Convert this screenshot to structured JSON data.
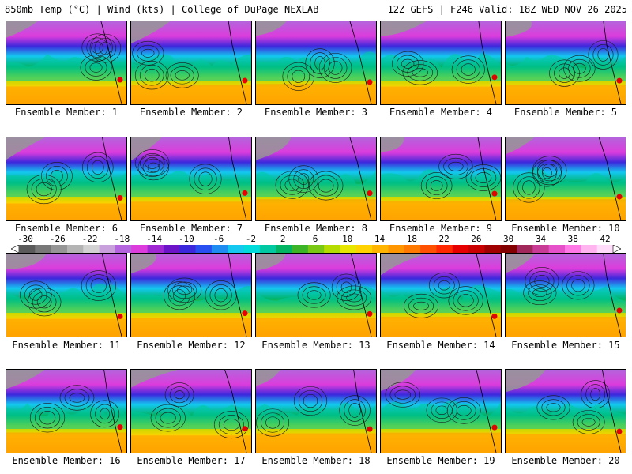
{
  "header": {
    "title_left": "850mb Temp (°C) | Wind (kts) | College of DuPage NEXLAB",
    "title_right": "12Z GEFS | F246 Valid: 18Z WED NOV 26 2025"
  },
  "members": [
    {
      "label": "Ensemble Member: 1"
    },
    {
      "label": "Ensemble Member: 2"
    },
    {
      "label": "Ensemble Member: 3"
    },
    {
      "label": "Ensemble Member: 4"
    },
    {
      "label": "Ensemble Member: 5"
    },
    {
      "label": "Ensemble Member: 6"
    },
    {
      "label": "Ensemble Member: 7"
    },
    {
      "label": "Ensemble Member: 8"
    },
    {
      "label": "Ensemble Member: 9"
    },
    {
      "label": "Ensemble Member: 10"
    },
    {
      "label": "Ensemble Member: 11"
    },
    {
      "label": "Ensemble Member: 12"
    },
    {
      "label": "Ensemble Member: 13"
    },
    {
      "label": "Ensemble Member: 14"
    },
    {
      "label": "Ensemble Member: 15"
    },
    {
      "label": "Ensemble Member: 16"
    },
    {
      "label": "Ensemble Member: 17"
    },
    {
      "label": "Ensemble Member: 18"
    },
    {
      "label": "Ensemble Member: 19"
    },
    {
      "label": "Ensemble Member: 20"
    }
  ],
  "colorbar": {
    "labels": [
      "-30",
      "-26",
      "-22",
      "-18",
      "-14",
      "-10",
      "-6",
      "-2",
      "2",
      "6",
      "10",
      "14",
      "18",
      "22",
      "26",
      "30",
      "34",
      "38",
      "42"
    ],
    "colors": [
      "#5a5a5a",
      "#787878",
      "#969696",
      "#b4b4b4",
      "#d2d2d2",
      "#c8a0dc",
      "#b464dc",
      "#dc3cdc",
      "#a028d2",
      "#6e14c8",
      "#3c28dc",
      "#2850f0",
      "#1e8cf0",
      "#14c8f0",
      "#00dcdc",
      "#00c8a0",
      "#00b464",
      "#3cb428",
      "#78c814",
      "#b4dc00",
      "#e6e600",
      "#ffd200",
      "#ffb400",
      "#ff9600",
      "#ff7800",
      "#ff5000",
      "#ff2800",
      "#e60000",
      "#c80000",
      "#a00000",
      "#820000",
      "#a0285a",
      "#c83c96",
      "#e650c8",
      "#ff78e6",
      "#ffb4f0",
      "#ffdcfa"
    ]
  }
}
